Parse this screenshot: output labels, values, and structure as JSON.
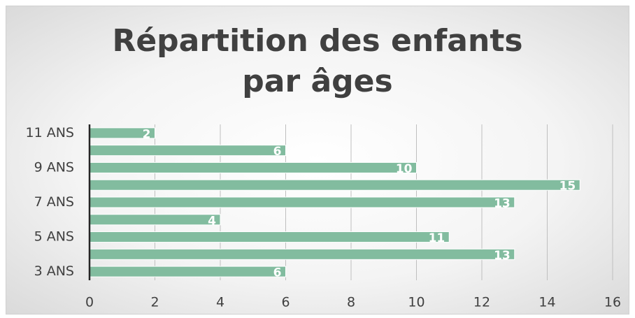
{
  "chart_data": {
    "type": "bar",
    "orientation": "horizontal",
    "title": "Répartition des enfants par âges",
    "categories": [
      "3 ANS",
      null,
      "5 ANS",
      null,
      "7 ANS",
      null,
      "9 ANS",
      null,
      "11 ANS"
    ],
    "values": [
      6,
      13,
      11,
      4,
      13,
      15,
      10,
      6,
      2
    ],
    "color": "#82bc9f",
    "xlim": [
      0,
      16
    ],
    "xticks": [
      0,
      2,
      4,
      6,
      8,
      10,
      12,
      14,
      16
    ],
    "grid": true
  }
}
